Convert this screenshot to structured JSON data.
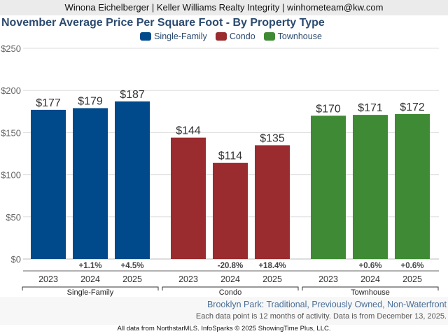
{
  "header": {
    "text": "Winona Eichelberger | Keller Williams Realty Integrity | winhometeam@kw.com"
  },
  "colors": {
    "Single-Family": "#004a8c",
    "Condo": "#9a2b2e",
    "Townhouse": "#3f8a34"
  },
  "subtitle": "Brooklyn Park: Traditional, Previously Owned, Non-Waterfront",
  "note": "Each data point is 12 months of activity. Data is from December 13, 2025.",
  "footer": "All data from NorthstarMLS. InfoSparks © 2025 ShowingTime Plus, LLC.",
  "chart_data": {
    "type": "bar",
    "title": "November Average Price Per Square Foot - By Property Type",
    "xlabel": "",
    "ylabel": "",
    "ylim": [
      0,
      250
    ],
    "yticks": [
      0,
      50,
      100,
      150,
      200,
      250
    ],
    "ytick_labels": [
      "$0",
      "$50",
      "$100",
      "$150",
      "$200",
      "$250"
    ],
    "grid": true,
    "legend": {
      "position": "top-center",
      "entries": [
        "Single-Family",
        "Condo",
        "Townhouse"
      ]
    },
    "groups": [
      {
        "name": "Single-Family",
        "categories": [
          "2023",
          "2024",
          "2025"
        ],
        "values": [
          177,
          179,
          187
        ],
        "labels": [
          "$177",
          "$179",
          "$187"
        ],
        "changes": [
          "",
          "+1.1%",
          "+4.5%"
        ]
      },
      {
        "name": "Condo",
        "categories": [
          "2023",
          "2024",
          "2025"
        ],
        "values": [
          144,
          114,
          135
        ],
        "labels": [
          "$144",
          "$114",
          "$135"
        ],
        "changes": [
          "",
          "-20.8%",
          "+18.4%"
        ]
      },
      {
        "name": "Townhouse",
        "categories": [
          "2023",
          "2024",
          "2025"
        ],
        "values": [
          170,
          171,
          172
        ],
        "labels": [
          "$170",
          "$171",
          "$172"
        ],
        "changes": [
          "",
          "+0.6%",
          "+0.6%"
        ]
      }
    ]
  }
}
